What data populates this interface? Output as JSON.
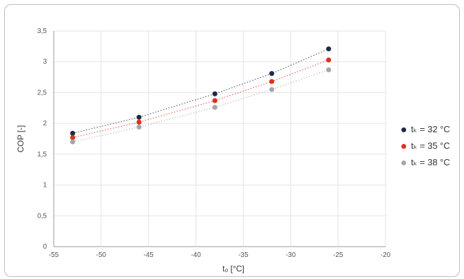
{
  "chart_data": {
    "type": "scatter",
    "title": "",
    "xlabel": "t₀ [°C]",
    "ylabel": "COP [-]",
    "xlim": [
      -55,
      -20
    ],
    "ylim": [
      0,
      3.5
    ],
    "xticks": [
      -55,
      -50,
      -45,
      -40,
      -35,
      -30,
      -25,
      -20
    ],
    "yticks": [
      0,
      0.5,
      1,
      1.5,
      2,
      2.5,
      3,
      3.5
    ],
    "ytick_labels": [
      "0",
      "0,5",
      "1",
      "1,5",
      "2",
      "2,5",
      "3",
      "3,5"
    ],
    "grid": true,
    "trendlines": "dotted",
    "legend_position": "right",
    "series": [
      {
        "name": "tₖ = 32 °C",
        "color": "#1f2a44",
        "x": [
          -53,
          -46,
          -38,
          -32,
          -26
        ],
        "y": [
          1.84,
          2.1,
          2.48,
          2.81,
          3.21
        ]
      },
      {
        "name": "tₖ = 35 °C",
        "color": "#e03020",
        "x": [
          -53,
          -46,
          -38,
          -32,
          -26
        ],
        "y": [
          1.77,
          2.02,
          2.37,
          2.68,
          3.03
        ]
      },
      {
        "name": "tₖ = 38 °C",
        "color": "#a6a6a6",
        "x": [
          -53,
          -46,
          -38,
          -32,
          -26
        ],
        "y": [
          1.7,
          1.94,
          2.26,
          2.55,
          2.87
        ]
      }
    ]
  }
}
